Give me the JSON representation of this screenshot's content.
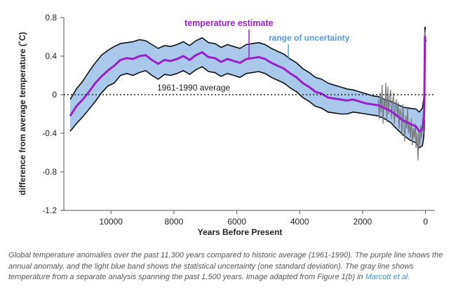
{
  "chart_data": {
    "type": "line",
    "xlabel": "Years Before Present",
    "ylabel": "difference from average temperature (˚C)",
    "xlim": [
      11500,
      -300
    ],
    "ylim": [
      -1.2,
      0.8
    ],
    "x_ticks": [
      10000,
      8000,
      6000,
      4000,
      2000,
      0
    ],
    "y_ticks": [
      0.8,
      0.4,
      0,
      -0.4,
      -0.8,
      -1.2
    ],
    "grid": false,
    "baseline": {
      "label": "1961-1990 average",
      "value": 0
    },
    "annotations": {
      "temperature_estimate": "temperature estimate",
      "range_of_uncertainty": "range of uncertainty"
    },
    "colors": {
      "estimate": "#9a1fc7",
      "uncertainty_band": "#a9c8ec",
      "band_edge": "#111111",
      "gray_series": "#777777",
      "uncertainty_label": "#5a9ad8"
    },
    "series": [
      {
        "name": "temperature estimate",
        "x": [
          11300,
          11100,
          10900,
          10700,
          10500,
          10300,
          10100,
          9900,
          9700,
          9500,
          9300,
          9100,
          8900,
          8700,
          8500,
          8300,
          8100,
          7900,
          7700,
          7500,
          7300,
          7100,
          6900,
          6700,
          6500,
          6300,
          6100,
          5900,
          5700,
          5500,
          5300,
          5100,
          4900,
          4700,
          4500,
          4300,
          4100,
          3900,
          3700,
          3500,
          3300,
          3100,
          2900,
          2700,
          2500,
          2300,
          2100,
          1900,
          1700,
          1500,
          1300,
          1100,
          900,
          700,
          500,
          300,
          200,
          100,
          60,
          40,
          20,
          0
        ],
        "y": [
          -0.22,
          -0.12,
          -0.05,
          0.03,
          0.12,
          0.19,
          0.25,
          0.3,
          0.36,
          0.38,
          0.37,
          0.4,
          0.41,
          0.36,
          0.32,
          0.36,
          0.35,
          0.37,
          0.4,
          0.36,
          0.41,
          0.44,
          0.39,
          0.38,
          0.34,
          0.37,
          0.35,
          0.33,
          0.37,
          0.38,
          0.39,
          0.37,
          0.33,
          0.3,
          0.27,
          0.22,
          0.18,
          0.12,
          0.08,
          0.03,
          0.01,
          -0.03,
          -0.04,
          -0.05,
          -0.06,
          -0.05,
          -0.07,
          -0.09,
          -0.1,
          -0.11,
          -0.14,
          -0.17,
          -0.22,
          -0.27,
          -0.3,
          -0.33,
          -0.38,
          -0.36,
          -0.25,
          -0.15,
          0.6,
          0.55
        ]
      },
      {
        "name": "range of uncertainty upper",
        "x": [
          11300,
          11100,
          10900,
          10700,
          10500,
          10300,
          10100,
          9900,
          9700,
          9500,
          9300,
          9100,
          8900,
          8700,
          8500,
          8300,
          8100,
          7900,
          7700,
          7500,
          7300,
          7100,
          6900,
          6700,
          6500,
          6300,
          6100,
          5900,
          5700,
          5500,
          5300,
          5100,
          4900,
          4700,
          4500,
          4300,
          4100,
          3900,
          3700,
          3500,
          3300,
          3100,
          2900,
          2700,
          2500,
          2300,
          2100,
          1900,
          1700,
          1500,
          1300,
          1100,
          900,
          700,
          500,
          300,
          200,
          100,
          60,
          40,
          20,
          0
        ],
        "y": [
          -0.05,
          0.06,
          0.14,
          0.24,
          0.33,
          0.41,
          0.46,
          0.5,
          0.53,
          0.54,
          0.55,
          0.57,
          0.56,
          0.52,
          0.48,
          0.51,
          0.5,
          0.52,
          0.55,
          0.51,
          0.56,
          0.59,
          0.54,
          0.53,
          0.49,
          0.52,
          0.5,
          0.48,
          0.52,
          0.53,
          0.54,
          0.52,
          0.48,
          0.45,
          0.42,
          0.37,
          0.33,
          0.27,
          0.23,
          0.18,
          0.16,
          0.12,
          0.1,
          0.08,
          0.06,
          0.05,
          0.03,
          0.01,
          -0.01,
          -0.02,
          -0.05,
          -0.07,
          -0.1,
          -0.13,
          -0.14,
          -0.15,
          -0.18,
          -0.14,
          -0.05,
          0.05,
          0.7,
          0.68
        ]
      },
      {
        "name": "range of uncertainty lower",
        "x": [
          11300,
          11100,
          10900,
          10700,
          10500,
          10300,
          10100,
          9900,
          9700,
          9500,
          9300,
          9100,
          8900,
          8700,
          8500,
          8300,
          8100,
          7900,
          7700,
          7500,
          7300,
          7100,
          6900,
          6700,
          6500,
          6300,
          6100,
          5900,
          5700,
          5500,
          5300,
          5100,
          4900,
          4700,
          4500,
          4300,
          4100,
          3900,
          3700,
          3500,
          3300,
          3100,
          2900,
          2700,
          2500,
          2300,
          2100,
          1900,
          1700,
          1500,
          1300,
          1100,
          900,
          700,
          500,
          300,
          200,
          100,
          60,
          40,
          20,
          0
        ],
        "y": [
          -0.38,
          -0.3,
          -0.23,
          -0.15,
          -0.07,
          0.02,
          0.09,
          0.12,
          0.2,
          0.22,
          0.2,
          0.23,
          0.25,
          0.2,
          0.16,
          0.21,
          0.2,
          0.22,
          0.25,
          0.21,
          0.26,
          0.29,
          0.24,
          0.23,
          0.19,
          0.22,
          0.2,
          0.18,
          0.22,
          0.23,
          0.24,
          0.22,
          0.18,
          0.15,
          0.12,
          0.07,
          0.03,
          -0.03,
          -0.07,
          -0.12,
          -0.14,
          -0.18,
          -0.19,
          -0.2,
          -0.2,
          -0.18,
          -0.19,
          -0.2,
          -0.21,
          -0.22,
          -0.25,
          -0.29,
          -0.36,
          -0.42,
          -0.47,
          -0.5,
          -0.55,
          -0.53,
          -0.45,
          -0.35,
          0.4,
          0.38
        ]
      },
      {
        "name": "gray line",
        "x": [
          1500,
          1470,
          1440,
          1410,
          1380,
          1350,
          1320,
          1290,
          1260,
          1230,
          1200,
          1170,
          1140,
          1110,
          1080,
          1050,
          1020,
          990,
          960,
          930,
          900,
          870,
          840,
          810,
          780,
          750,
          720,
          690,
          660,
          630,
          600,
          570,
          540,
          510,
          480,
          450,
          420,
          390,
          360,
          330,
          300,
          270,
          240,
          210,
          180,
          150,
          120,
          90,
          60,
          40,
          20,
          0
        ],
        "y": [
          -0.05,
          -0.25,
          0.02,
          -0.18,
          0.1,
          -0.3,
          -0.05,
          -0.15,
          0.12,
          -0.28,
          0.08,
          -0.2,
          -0.02,
          0.05,
          -0.25,
          -0.1,
          0.02,
          -0.3,
          -0.12,
          -0.05,
          -0.22,
          -0.08,
          -0.35,
          -0.15,
          -0.2,
          -0.42,
          -0.1,
          -0.3,
          -0.48,
          -0.22,
          -0.35,
          -0.15,
          -0.4,
          -0.28,
          -0.45,
          -0.25,
          -0.52,
          -0.35,
          -0.45,
          -0.3,
          -0.55,
          -0.4,
          -0.68,
          -0.38,
          -0.52,
          -0.32,
          -0.45,
          -0.25,
          -0.4,
          0.05,
          0.65,
          0.6
        ]
      }
    ]
  },
  "caption": {
    "text": "Global temperature anomalies over the past 11,300 years compared to historic average (1961-1990). The purple line shows the annual anomaly, and the light blue band shows the statistical uncertainty (one standard deviation). The gray line shows temperature from a separate analysis spanning the past 1,500 years. Image adapted from Figure 1(b) in ",
    "link_text": "Marcott et al.",
    "end": ""
  }
}
